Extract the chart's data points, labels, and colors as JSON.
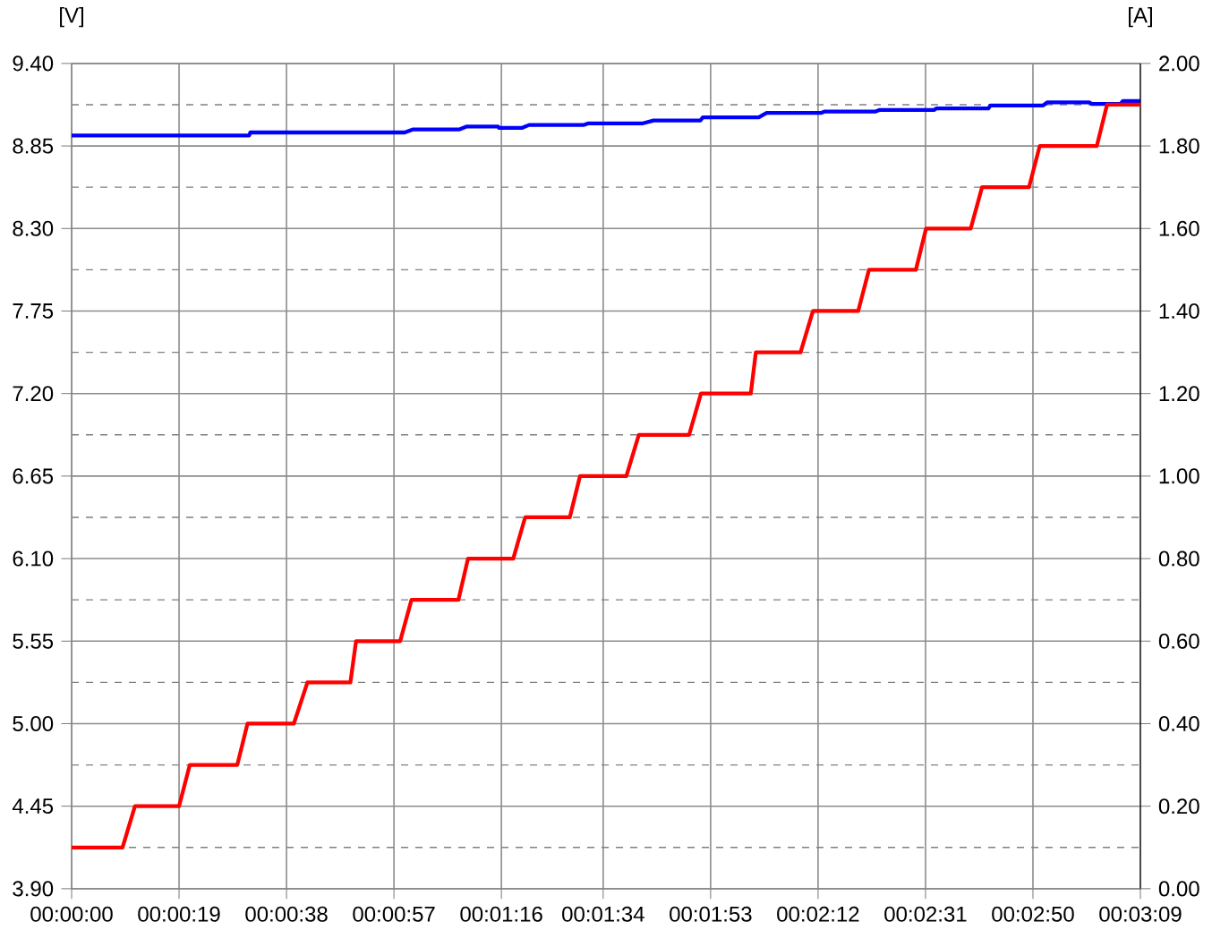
{
  "chart_data": {
    "type": "line",
    "ylabel": "[V]",
    "y2label": "[A]",
    "grid": true,
    "xlim": [
      0,
      189
    ],
    "ylim": [
      3.9,
      9.4
    ],
    "y2lim": [
      0,
      2
    ],
    "xticks": [
      {
        "value": 0,
        "label": "00:00:00"
      },
      {
        "value": 19,
        "label": "00:00:19"
      },
      {
        "value": 38,
        "label": "00:00:38"
      },
      {
        "value": 57,
        "label": "00:00:57"
      },
      {
        "value": 76,
        "label": "00:01:16"
      },
      {
        "value": 94,
        "label": "00:01:34"
      },
      {
        "value": 113,
        "label": "00:01:53"
      },
      {
        "value": 132,
        "label": "00:02:12"
      },
      {
        "value": 151,
        "label": "00:02:31"
      },
      {
        "value": 170,
        "label": "00:02:50"
      },
      {
        "value": 189,
        "label": "00:03:09"
      }
    ],
    "yticks": [
      {
        "value": 3.9,
        "label": "3.90"
      },
      {
        "value": 4.45,
        "label": "4.45"
      },
      {
        "value": 5.0,
        "label": "5.00"
      },
      {
        "value": 5.55,
        "label": "5.55"
      },
      {
        "value": 6.1,
        "label": "6.10"
      },
      {
        "value": 6.65,
        "label": "6.65"
      },
      {
        "value": 7.2,
        "label": "7.20"
      },
      {
        "value": 7.75,
        "label": "7.75"
      },
      {
        "value": 8.3,
        "label": "8.30"
      },
      {
        "value": 8.85,
        "label": "8.85"
      },
      {
        "value": 9.4,
        "label": "9.40"
      }
    ],
    "y2ticks": [
      {
        "value": 0,
        "label": "0.00"
      },
      {
        "value": 0.2,
        "label": "0.20"
      },
      {
        "value": 0.4,
        "label": "0.40"
      },
      {
        "value": 0.6,
        "label": "0.60"
      },
      {
        "value": 0.8,
        "label": "0.80"
      },
      {
        "value": 1.0,
        "label": "1.00"
      },
      {
        "value": 1.2,
        "label": "1.20"
      },
      {
        "value": 1.4,
        "label": "1.40"
      },
      {
        "value": 1.6,
        "label": "1.60"
      },
      {
        "value": 1.8,
        "label": "1.80"
      },
      {
        "value": 2.0,
        "label": "2.00"
      }
    ],
    "series": [
      {
        "color": "#0000ff",
        "axis": "y",
        "x": [
          0,
          31.4,
          31.6,
          58.9,
          60.3,
          68.5,
          69.9,
          75.4,
          75.6,
          79.6,
          80.9,
          90.6,
          91.3,
          100.9,
          102.9,
          111.2,
          111.6,
          121.5,
          122.9,
          132.5,
          133.2,
          142.2,
          142.9,
          152.5,
          152.9,
          162.1,
          162.5,
          171.8,
          172.5,
          180,
          180.4,
          185.5,
          185.9,
          189
        ],
        "values": [
          8.92,
          8.92,
          8.94,
          8.94,
          8.96,
          8.96,
          8.98,
          8.98,
          8.97,
          8.97,
          8.99,
          8.99,
          9.0,
          9.0,
          9.02,
          9.02,
          9.04,
          9.04,
          9.07,
          9.07,
          9.08,
          9.08,
          9.09,
          9.09,
          9.1,
          9.1,
          9.12,
          9.12,
          9.14,
          9.14,
          9.13,
          9.13,
          9.15,
          9.15
        ]
      },
      {
        "color": "#ff0000",
        "axis": "y2",
        "x": [
          0,
          9.0,
          11.2,
          19.0,
          20.9,
          29.3,
          31.1,
          39.3,
          41.7,
          49.3,
          50.3,
          58.1,
          60.1,
          68.4,
          70.1,
          78.1,
          80.2,
          88.1,
          89.9,
          98.1,
          100.3,
          109.2,
          111.3,
          120.1,
          121,
          128.9,
          131.1,
          139.1,
          141,
          149.3,
          151.1,
          159,
          161,
          169.3,
          171.2,
          181.3,
          183.1,
          189
        ],
        "values": [
          0.1,
          0.1,
          0.2,
          0.2,
          0.3,
          0.3,
          0.4,
          0.4,
          0.5,
          0.5,
          0.6,
          0.6,
          0.7,
          0.7,
          0.8,
          0.8,
          0.9,
          0.9,
          1.0,
          1.0,
          1.1,
          1.1,
          1.2,
          1.2,
          1.3,
          1.3,
          1.4,
          1.4,
          1.5,
          1.5,
          1.6,
          1.6,
          1.7,
          1.7,
          1.8,
          1.8,
          1.9,
          1.9
        ]
      }
    ]
  }
}
